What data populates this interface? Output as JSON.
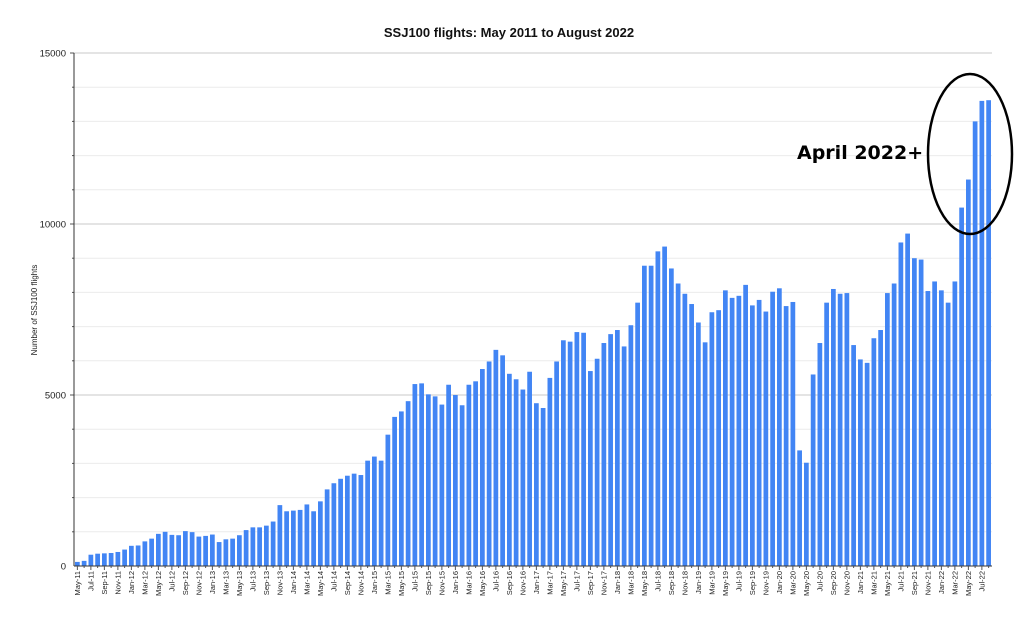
{
  "chart_data": {
    "type": "bar",
    "title": "SSJ100 flights: May 2011 to August 2022",
    "xlabel": "",
    "ylabel": "Number of SSJ100 flights",
    "ylim": [
      0,
      15000
    ],
    "yticks": [
      "0",
      "5000",
      "10000",
      "15000"
    ],
    "grid": true,
    "bar_color": "#4285f4",
    "annotation": {
      "text": "April 2022+",
      "shape": "ellipse"
    },
    "categories": [
      "May-11",
      "Jun-11",
      "Jul-11",
      "Aug-11",
      "Sep-11",
      "Oct-11",
      "Nov-11",
      "Dec-11",
      "Jan-12",
      "Feb-12",
      "Mar-12",
      "Apr-12",
      "May-12",
      "Jun-12",
      "Jul-12",
      "Aug-12",
      "Sep-12",
      "Oct-12",
      "Nov-12",
      "Dec-12",
      "Jan-13",
      "Feb-13",
      "Mar-13",
      "Apr-13",
      "May-13",
      "Jun-13",
      "Jul-13",
      "Aug-13",
      "Sep-13",
      "Oct-13",
      "Nov-13",
      "Dec-13",
      "Jan-14",
      "Feb-14",
      "Mar-14",
      "Apr-14",
      "May-14",
      "Jun-14",
      "Jul-14",
      "Aug-14",
      "Sep-14",
      "Oct-14",
      "Nov-14",
      "Dec-14",
      "Jan-15",
      "Feb-15",
      "Mar-15",
      "Apr-15",
      "May-15",
      "Jun-15",
      "Jul-15",
      "Aug-15",
      "Sep-15",
      "Oct-15",
      "Nov-15",
      "Dec-15",
      "Jan-16",
      "Feb-16",
      "Mar-16",
      "Apr-16",
      "May-16",
      "Jun-16",
      "Jul-16",
      "Aug-16",
      "Sep-16",
      "Oct-16",
      "Nov-16",
      "Dec-16",
      "Jan-17",
      "Feb-17",
      "Mar-17",
      "Apr-17",
      "May-17",
      "Jun-17",
      "Jul-17",
      "Aug-17",
      "Sep-17",
      "Oct-17",
      "Nov-17",
      "Dec-17",
      "Jan-18",
      "Feb-18",
      "Mar-18",
      "Apr-18",
      "May-18",
      "Jun-18",
      "Jul-18",
      "Aug-18",
      "Sep-18",
      "Oct-18",
      "Nov-18",
      "Dec-18",
      "Jan-19",
      "Feb-19",
      "Mar-19",
      "Apr-19",
      "May-19",
      "Jun-19",
      "Jul-19",
      "Aug-19",
      "Sep-19",
      "Oct-19",
      "Nov-19",
      "Dec-19",
      "Jan-20",
      "Feb-20",
      "Mar-20",
      "Apr-20",
      "May-20",
      "Jun-20",
      "Jul-20",
      "Aug-20",
      "Sep-20",
      "Oct-20",
      "Nov-20",
      "Dec-20",
      "Jan-21",
      "Feb-21",
      "Mar-21",
      "Apr-21",
      "May-21",
      "Jun-21",
      "Jul-21",
      "Aug-21",
      "Sep-21",
      "Oct-21",
      "Nov-21",
      "Dec-21",
      "Jan-22",
      "Feb-22",
      "Mar-22",
      "Apr-22",
      "May-22",
      "Jun-22",
      "Jul-22",
      "Aug-22"
    ],
    "values": [
      120,
      150,
      330,
      360,
      370,
      380,
      410,
      480,
      590,
      600,
      720,
      800,
      940,
      1000,
      910,
      900,
      1020,
      990,
      860,
      880,
      920,
      700,
      780,
      800,
      900,
      1050,
      1130,
      1130,
      1180,
      1300,
      1780,
      1600,
      1620,
      1640,
      1800,
      1600,
      1890,
      2240,
      2420,
      2550,
      2640,
      2700,
      2660,
      3080,
      3200,
      3080,
      3840,
      4360,
      4520,
      4820,
      5320,
      5340,
      5020,
      4960,
      4720,
      5300,
      5000,
      4700,
      5300,
      5400,
      5760,
      5980,
      6320,
      6160,
      5620,
      5460,
      5160,
      5680,
      4760,
      4620,
      5500,
      5980,
      6600,
      6560,
      6840,
      6820,
      5700,
      6060,
      6520,
      6780,
      6900,
      6420,
      7040,
      7700,
      8780,
      8780,
      9200,
      9340,
      8700,
      8260,
      7960,
      7660,
      7120,
      6540,
      7420,
      7480,
      8060,
      7840,
      7900,
      8220,
      7620,
      7780,
      7440,
      8020,
      8120,
      7600,
      7720,
      3380,
      3020,
      5600,
      6520,
      7700,
      8100,
      7960,
      7980,
      6460,
      6040,
      5940,
      6660,
      6900,
      7980,
      8260,
      9460,
      9720,
      9000,
      8960,
      8040,
      8320,
      8060,
      7700,
      8320,
      10480,
      11300,
      13000,
      13600,
      13620
    ]
  }
}
